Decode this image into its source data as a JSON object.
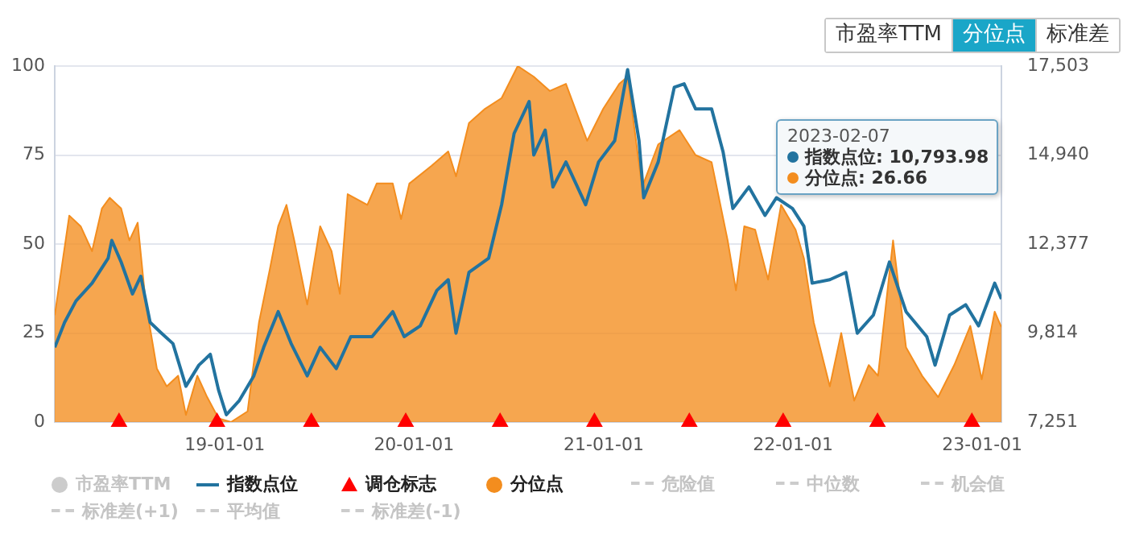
{
  "chart_data": {
    "type": "line",
    "legend": "bottom",
    "grid": "y",
    "xlim": [
      "2018-02-07",
      "2023-02-07"
    ],
    "xticks": [
      {
        "value": "2019-01-01",
        "label": "19-01-01"
      },
      {
        "value": "2020-01-01",
        "label": "20-01-01"
      },
      {
        "value": "2021-01-01",
        "label": "21-01-01"
      },
      {
        "value": "2022-01-01",
        "label": "22-01-01"
      },
      {
        "value": "2023-01-01",
        "label": "23-01-01"
      }
    ],
    "ylim": [
      0,
      100
    ],
    "yticks": [
      0,
      25,
      50,
      75,
      100
    ],
    "y2lim": [
      7251,
      17503
    ],
    "y2ticks": [
      {
        "value": 7251,
        "label": "7,251"
      },
      {
        "value": 9814,
        "label": "9,814"
      },
      {
        "value": 12377,
        "label": "12,377"
      },
      {
        "value": 14940,
        "label": "14,940"
      },
      {
        "value": 17503,
        "label": "17,503"
      }
    ],
    "series": [
      {
        "name": "市盈率TTM",
        "type": "area",
        "color": "#cccccc"
      },
      {
        "name": "指数点位",
        "axis": "y2",
        "color": "#22739f",
        "x": [
          "2018-02-07",
          "2018-02-26",
          "2018-03-20",
          "2018-04-20",
          "2018-05-21",
          "2018-05-28",
          "2018-06-15",
          "2018-07-07",
          "2018-07-23",
          "2018-08-10",
          "2018-09-01",
          "2018-09-23",
          "2018-10-18",
          "2018-11-12",
          "2018-12-04",
          "2018-12-20",
          "2019-01-04",
          "2019-01-29",
          "2019-02-26",
          "2019-03-17",
          "2019-04-14",
          "2019-05-09",
          "2019-06-09",
          "2019-07-04",
          "2019-08-04",
          "2019-09-01",
          "2019-10-12",
          "2019-11-21",
          "2019-12-13",
          "2020-01-13",
          "2020-02-14",
          "2020-03-07",
          "2020-03-22",
          "2020-04-16",
          "2020-05-24",
          "2020-06-18",
          "2020-07-12",
          "2020-08-10",
          "2020-08-19",
          "2020-09-10",
          "2020-09-25",
          "2020-10-20",
          "2020-11-27",
          "2020-12-22",
          "2021-01-22",
          "2021-02-16",
          "2021-03-10",
          "2021-03-19",
          "2021-04-16",
          "2021-05-17",
          "2021-06-05",
          "2021-06-27",
          "2021-07-28",
          "2021-08-19",
          "2021-09-07",
          "2021-10-08",
          "2021-11-08",
          "2021-11-30",
          "2021-12-31",
          "2022-01-22",
          "2022-02-07",
          "2022-03-13",
          "2022-04-13",
          "2022-05-05",
          "2022-06-05",
          "2022-07-06",
          "2022-08-07",
          "2022-09-16",
          "2022-10-02",
          "2022-10-30",
          "2022-11-30",
          "2022-12-25",
          "2023-01-25",
          "2023-02-07"
        ],
        "values": [
          9400,
          10120,
          10740,
          11250,
          11970,
          12480,
          11860,
          10940,
          11450,
          10120,
          9810,
          9510,
          8280,
          8890,
          9200,
          8170,
          7460,
          7870,
          8580,
          9400,
          10430,
          9510,
          8580,
          9400,
          8790,
          9710,
          9710,
          10430,
          9710,
          10020,
          11040,
          11350,
          9810,
          11560,
          11970,
          13510,
          15560,
          16480,
          14940,
          15660,
          14020,
          14740,
          13510,
          14740,
          15350,
          17400,
          15350,
          13710,
          14740,
          16890,
          16990,
          16270,
          16270,
          15040,
          13400,
          14020,
          13200,
          13710,
          13400,
          12890,
          11250,
          11350,
          11560,
          9810,
          10330,
          11860,
          10430,
          9710,
          8890,
          10330,
          10630,
          10020,
          11250,
          10793.98
        ]
      },
      {
        "name": "调仓标志",
        "type": "scatter",
        "marker": "triangle",
        "color": "#ff0000",
        "x": [
          "2018-06-11",
          "2018-12-17",
          "2019-06-17",
          "2019-12-16",
          "2020-06-15",
          "2020-12-14",
          "2021-06-15",
          "2021-12-13",
          "2022-06-13",
          "2022-12-12"
        ],
        "values": [
          0,
          0,
          0,
          0,
          0,
          0,
          0,
          0,
          0,
          0
        ]
      },
      {
        "name": "分位点",
        "type": "area",
        "color": "#f38d1e",
        "x": [
          "2018-02-07",
          "2018-03-07",
          "2018-03-29",
          "2018-04-20",
          "2018-05-09",
          "2018-05-24",
          "2018-06-15",
          "2018-07-01",
          "2018-07-17",
          "2018-08-01",
          "2018-08-23",
          "2018-09-11",
          "2018-10-03",
          "2018-10-18",
          "2018-11-09",
          "2018-11-28",
          "2018-12-20",
          "2019-01-13",
          "2019-02-14",
          "2019-03-08",
          "2019-03-29",
          "2019-04-14",
          "2019-04-30",
          "2019-05-15",
          "2019-06-09",
          "2019-07-04",
          "2019-07-26",
          "2019-08-11",
          "2019-08-26",
          "2019-10-03",
          "2019-10-21",
          "2019-11-21",
          "2019-12-07",
          "2019-12-23",
          "2020-02-04",
          "2020-03-07",
          "2020-03-22",
          "2020-04-16",
          "2020-05-17",
          "2020-06-18",
          "2020-07-19",
          "2020-08-19",
          "2020-09-19",
          "2020-10-20",
          "2020-11-30",
          "2020-12-31",
          "2021-01-31",
          "2021-02-16",
          "2021-03-16",
          "2021-04-16",
          "2021-05-27",
          "2021-06-27",
          "2021-07-28",
          "2021-08-28",
          "2021-09-13",
          "2021-09-29",
          "2021-10-20",
          "2021-11-14",
          "2021-12-09",
          "2022-01-06",
          "2022-01-22",
          "2022-02-10",
          "2022-03-13",
          "2022-04-04",
          "2022-04-29",
          "2022-05-27",
          "2022-06-14",
          "2022-07-13",
          "2022-08-07",
          "2022-09-07",
          "2022-10-08",
          "2022-11-08",
          "2022-12-09",
          "2022-12-31",
          "2023-01-25",
          "2023-02-07"
        ],
        "values": [
          30,
          58,
          55,
          48,
          60,
          63,
          60,
          51,
          56,
          34,
          15,
          10,
          13,
          2,
          13,
          7,
          1,
          0,
          3,
          28,
          43,
          55,
          61,
          51,
          33,
          55,
          48,
          36,
          64,
          61,
          67,
          67,
          57,
          67,
          72,
          76,
          69,
          84,
          88,
          91,
          100,
          97,
          93,
          95,
          79,
          88,
          95,
          97,
          66,
          78,
          82,
          75,
          73,
          51,
          37,
          55,
          54,
          40,
          61,
          54,
          46,
          28,
          10,
          25,
          6,
          16,
          13,
          51,
          21,
          13,
          7,
          16,
          27,
          12,
          31,
          26.66
        ]
      },
      {
        "name": "危险值",
        "type": "line",
        "line_style": "dashed",
        "color": "#cccccc"
      },
      {
        "name": "中位数",
        "type": "line",
        "line_style": "dashed",
        "color": "#cccccc"
      },
      {
        "name": "机会值",
        "type": "line",
        "line_style": "dashed",
        "color": "#cccccc"
      },
      {
        "name": "标准差(+1)",
        "type": "line",
        "line_style": "dashed",
        "color": "#cccccc"
      },
      {
        "name": "平均值",
        "type": "line",
        "line_style": "dashed",
        "color": "#cccccc"
      },
      {
        "name": "标准差(-1)",
        "type": "line",
        "line_style": "dashed",
        "color": "#cccccc"
      }
    ],
    "annotations": [
      "市盈率TTM",
      "分位点",
      "标准差",
      "2023-02-07",
      "指数点位: 10,793.98",
      "分位点: 26.66"
    ]
  }
}
